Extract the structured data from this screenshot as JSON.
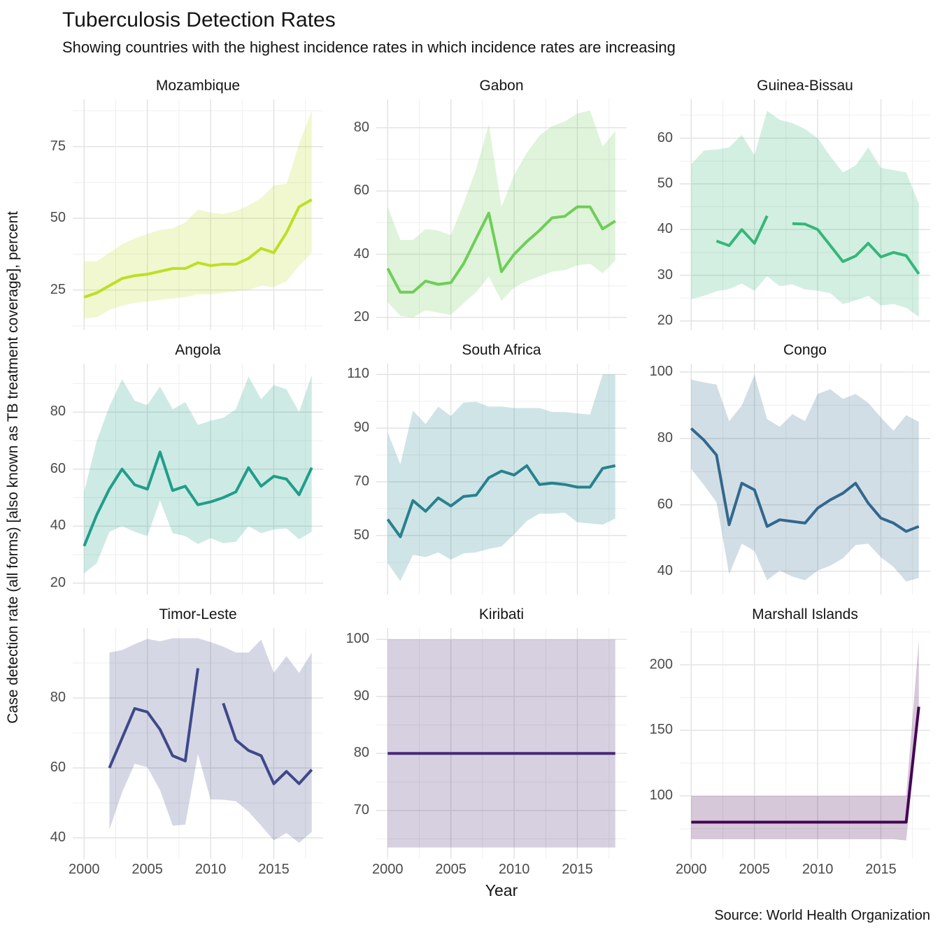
{
  "header": {
    "title": "Tuberculosis Detection Rates",
    "subtitle": "Showing countries with the highest incidence rates in which incidence rates are increasing"
  },
  "caption": "Source: World Health Organization",
  "chart_data": {
    "type": "line",
    "title": "Tuberculosis Detection Rates",
    "subtitle": "Showing countries with the highest incidence rates in which incidence rates are increasing",
    "xlabel": "Year",
    "ylabel": "Case detection rate (all forms) [also known as TB treatment coverage], percent",
    "caption": "Source: World Health Organization",
    "legend": "none",
    "grid": "on",
    "x": [
      2000,
      2001,
      2002,
      2003,
      2004,
      2005,
      2006,
      2007,
      2008,
      2009,
      2010,
      2011,
      2012,
      2013,
      2014,
      2015,
      2016,
      2017,
      2018
    ],
    "x_ticks": [
      2000,
      2005,
      2010,
      2015
    ],
    "x_minor_ticks": [
      2002.5,
      2007.5,
      2012.5,
      2017.5
    ],
    "x_range": [
      1999.1,
      2018.9
    ],
    "facets": [
      {
        "title": "Mozambique",
        "color": "#bddf26",
        "y_ticks": [
          25,
          50,
          75
        ],
        "y_range": [
          11,
          91.5
        ],
        "line": [
          22.5,
          24,
          26.5,
          29,
          30,
          30.5,
          31.5,
          32.5,
          32.5,
          34.5,
          33.5,
          34,
          34,
          36,
          39.5,
          38,
          45,
          54,
          56.5
        ],
        "lower": [
          15,
          15.5,
          18,
          19.5,
          20.5,
          21,
          21.5,
          22,
          22.5,
          23.5,
          23.5,
          24,
          24.5,
          25,
          26.5,
          26,
          28,
          33.5,
          38
        ],
        "upper": [
          35,
          35,
          38,
          41,
          43,
          44.5,
          46,
          46.5,
          48.5,
          53,
          52,
          51.5,
          52.5,
          54.5,
          57,
          61.5,
          62,
          76,
          87.5
        ]
      },
      {
        "title": "Gabon",
        "color": "#6ece58",
        "y_ticks": [
          20,
          40,
          60,
          80
        ],
        "y_range": [
          16,
          89
        ],
        "line": [
          35.5,
          28,
          28,
          31.5,
          30.5,
          31,
          37,
          45,
          53,
          34.5,
          40,
          44,
          47.5,
          51.5,
          52,
          55,
          55,
          48,
          50.5
        ],
        "lower": [
          24.9,
          20.5,
          20,
          22.3,
          21.5,
          20.8,
          24.5,
          28,
          33,
          25.3,
          29.5,
          31.5,
          33,
          34.5,
          35,
          36.5,
          37,
          34,
          38
        ],
        "upper": [
          55,
          44.5,
          44.5,
          48,
          47.5,
          46,
          56,
          67,
          81,
          55,
          65,
          72,
          77.5,
          80.5,
          82,
          84.5,
          85.5,
          74,
          79
        ]
      },
      {
        "title": "Guinea-Bissau",
        "color": "#35b779",
        "y_ticks": [
          20,
          30,
          40,
          50,
          60
        ],
        "y_range": [
          18,
          68.5
        ],
        "line": [
          null,
          null,
          37.5,
          36.5,
          40,
          37,
          43,
          null,
          41.3,
          41.2,
          40,
          36.5,
          33,
          34.2,
          37,
          34,
          35,
          34.3,
          30.3
        ],
        "lower": [
          24.8,
          25.5,
          26.5,
          27,
          28.2,
          26.6,
          29.8,
          27.6,
          28,
          26.9,
          26.6,
          26.1,
          23.7,
          24.5,
          25.5,
          23.4,
          23.7,
          22.9,
          20.9
        ],
        "upper": [
          54.3,
          57.3,
          57.5,
          58,
          60.7,
          56.3,
          66,
          64,
          63.3,
          62,
          60,
          56,
          52.5,
          54,
          58,
          53.5,
          53,
          52.5,
          45.7
        ]
      },
      {
        "title": "Angola",
        "color": "#1f9e89",
        "y_ticks": [
          20,
          40,
          60,
          80
        ],
        "y_range": [
          16,
          97
        ],
        "line": [
          33,
          44,
          53,
          60,
          54.5,
          53,
          66,
          52.5,
          54,
          47.5,
          48.5,
          50,
          52,
          60.5,
          54,
          57.5,
          56.5,
          51,
          60.5
        ],
        "lower": [
          23.4,
          27,
          38,
          40,
          38,
          36.5,
          49,
          37.5,
          36.5,
          33.7,
          35.8,
          34,
          34.5,
          40,
          37.5,
          38.8,
          39.2,
          35.4,
          38
        ],
        "upper": [
          52,
          70,
          82,
          91.5,
          84,
          82.5,
          89,
          81,
          83.5,
          75.5,
          77,
          78,
          81,
          92.5,
          84.5,
          89.5,
          88,
          80,
          93
        ]
      },
      {
        "title": "South Africa",
        "color": "#26828e",
        "y_ticks": [
          50,
          70,
          90,
          110
        ],
        "y_range": [
          28,
          114
        ],
        "line": [
          56,
          49.5,
          63,
          59,
          64,
          61,
          64.5,
          65,
          71.5,
          74,
          72.5,
          76,
          69,
          69.5,
          69,
          68,
          68,
          75,
          76
        ],
        "lower": [
          39.7,
          33,
          42.8,
          41.9,
          43.7,
          41,
          43.3,
          43.7,
          45,
          45.9,
          50.4,
          55.4,
          58.1,
          58.1,
          58.5,
          54.9,
          54.5,
          54,
          56.3
        ],
        "upper": [
          88.5,
          76.5,
          96.5,
          91.5,
          98,
          94.5,
          99.5,
          99.8,
          98,
          98,
          97.5,
          97.5,
          97.5,
          96,
          96,
          95.5,
          95,
          110,
          110
        ]
      },
      {
        "title": "Congo",
        "color": "#31688e",
        "y_ticks": [
          40,
          60,
          80,
          100
        ],
        "y_range": [
          33,
          102.5
        ],
        "line": [
          83,
          79.5,
          75,
          54,
          66.5,
          64.5,
          53.5,
          55.5,
          55,
          54.5,
          59,
          61.5,
          63.5,
          66.5,
          60.5,
          56,
          54.5,
          52,
          53.5
        ],
        "lower": [
          70.8,
          66,
          60.8,
          39.1,
          48.3,
          46.1,
          37.3,
          40.2,
          38.4,
          37.3,
          40.2,
          41.7,
          43.9,
          47.9,
          48.3,
          44.2,
          41.3,
          36.9,
          38
        ],
        "upper": [
          97.7,
          96.9,
          96.2,
          85.2,
          89.9,
          99.1,
          85.8,
          83.5,
          87.3,
          85.2,
          93.4,
          94.8,
          91.9,
          93.4,
          90.7,
          86.3,
          82.3,
          87,
          85
        ]
      },
      {
        "title": "Timor-Leste",
        "color": "#3e4989",
        "y_ticks": [
          40,
          60,
          80
        ],
        "y_range": [
          34,
          100
        ],
        "line": [
          null,
          null,
          60,
          68.5,
          77,
          76,
          71,
          63.5,
          62,
          88.5,
          null,
          78.5,
          68,
          65,
          63.5,
          55.5,
          59,
          55.5,
          59.5
        ],
        "lower": [
          null,
          null,
          42.4,
          53,
          61.2,
          60.2,
          53.7,
          43.5,
          43.8,
          64,
          51,
          50.9,
          50.5,
          47.5,
          43.5,
          39.3,
          41.4,
          38.6,
          41.7
        ],
        "upper": [
          null,
          null,
          93,
          93.7,
          95.4,
          96.9,
          96.2,
          97.1,
          97.1,
          97.1,
          96,
          94.7,
          93,
          93,
          96.7,
          87.2,
          92,
          87.2,
          93
        ]
      },
      {
        "title": "Kiribati",
        "color": "#482878",
        "y_ticks": [
          70,
          80,
          90,
          100
        ],
        "y_range": [
          61.5,
          102
        ],
        "line": [
          80,
          80,
          80,
          80,
          80,
          80,
          80,
          80,
          80,
          80,
          80,
          80,
          80,
          80,
          80,
          80,
          80,
          80,
          80
        ],
        "lower": [
          63.5,
          63.5,
          63.5,
          63.5,
          63.5,
          63.5,
          63.5,
          63.5,
          63.5,
          63.5,
          63.5,
          63.5,
          63.5,
          63.5,
          63.5,
          63.5,
          63.5,
          63.5,
          63.5
        ],
        "upper": [
          100,
          100,
          100,
          100,
          100,
          100,
          100,
          100,
          100,
          100,
          100,
          100,
          100,
          100,
          100,
          100,
          100,
          100,
          100
        ]
      },
      {
        "title": "Marshall Islands",
        "color": "#440154",
        "y_ticks": [
          100,
          150,
          200
        ],
        "y_range": [
          52,
          228
        ],
        "line": [
          80,
          80,
          80,
          80,
          80,
          80,
          80,
          80,
          80,
          80,
          80,
          80,
          80,
          80,
          80,
          80,
          80,
          80,
          168
        ],
        "lower": [
          67,
          67,
          67,
          67,
          67,
          67,
          67,
          67,
          67,
          67,
          67,
          67,
          67,
          67,
          67,
          67,
          67,
          66,
          160
        ],
        "upper": [
          100,
          100,
          100,
          100,
          100,
          100,
          100,
          100,
          100,
          100,
          100,
          100,
          100,
          100,
          100,
          100,
          100,
          100,
          219
        ]
      }
    ],
    "style": {
      "ribbon_opacity": 0.22,
      "grid_major_color": "#e3e3e3",
      "grid_minor_color": "#efefef",
      "tick_label_color": "#4b4b4b",
      "line_width": 4
    }
  }
}
